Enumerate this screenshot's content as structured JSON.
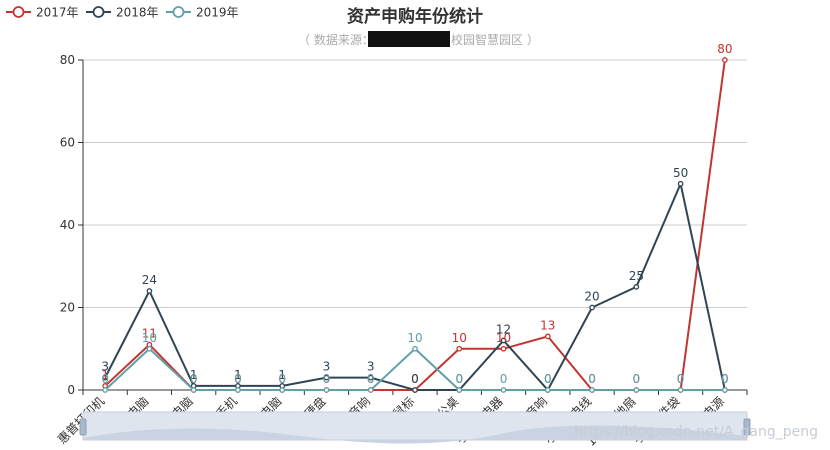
{
  "chart_data": {
    "type": "line",
    "title": "资产申购年份统计",
    "subtitle_prefix": "（ 数据来源：",
    "subtitle_suffix": "校园智慧园区 ）",
    "categories": [
      "惠普打印机",
      "电脑",
      "小米电脑",
      "小米手机",
      "联想电脑",
      "固态硬盘",
      "音响",
      "有线鼠标",
      "办公桌",
      "手机充电器",
      "JBC音响",
      "小米充电线",
      "12寸落地扇",
      "手提文件袋",
      "移动电源"
    ],
    "series": [
      {
        "name": "2017年",
        "color": "#c23531",
        "values": [
          1,
          11,
          0,
          0,
          0,
          0,
          0,
          0,
          10,
          10,
          13,
          0,
          0,
          0,
          80
        ]
      },
      {
        "name": "2018年",
        "color": "#2f4554",
        "values": [
          3,
          24,
          1,
          1,
          1,
          3,
          3,
          0,
          0,
          12,
          0,
          20,
          25,
          50,
          0
        ]
      },
      {
        "name": "2019年",
        "color": "#61a0a8",
        "values": [
          0,
          10,
          0,
          0,
          0,
          0,
          0,
          10,
          0,
          0,
          0,
          0,
          0,
          0,
          0
        ]
      }
    ],
    "yticks": [
      0,
      20,
      40,
      60,
      80
    ],
    "ylim": [
      0,
      80
    ],
    "grid": true,
    "legend_position": "top-left",
    "datazoom": true
  },
  "watermark": "https://blog.csdn.net/A_gang_peng"
}
